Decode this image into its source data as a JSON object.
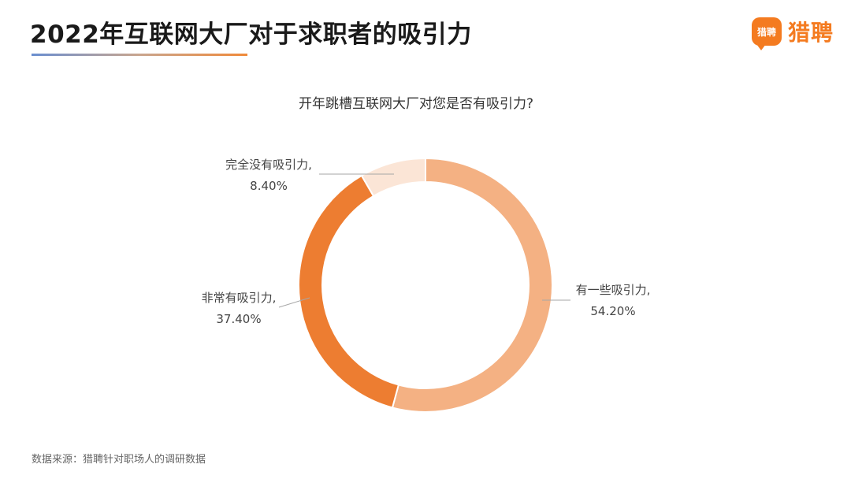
{
  "header": {
    "title": "2022年互联网大厂对于求职者的吸引力",
    "logo_text": "猎聘",
    "logo_mark_text": "猎聘"
  },
  "colors": {
    "accent": "#f47b20"
  },
  "chart_data": {
    "type": "pie",
    "style": "donut",
    "title": "开年跳槽互联网大厂对您是否有吸引力?",
    "slices": [
      {
        "label": "有一些吸引力",
        "value": 54.2,
        "display": "54.20%",
        "color": "#f4b183"
      },
      {
        "label": "非常有吸引力",
        "value": 37.4,
        "display": "37.40%",
        "color": "#ed7d31"
      },
      {
        "label": "完全没有吸引力",
        "value": 8.4,
        "display": "8.40%",
        "color": "#fbe5d6"
      }
    ]
  },
  "footer": {
    "source": "数据来源：猎聘针对职场人的调研数据"
  }
}
